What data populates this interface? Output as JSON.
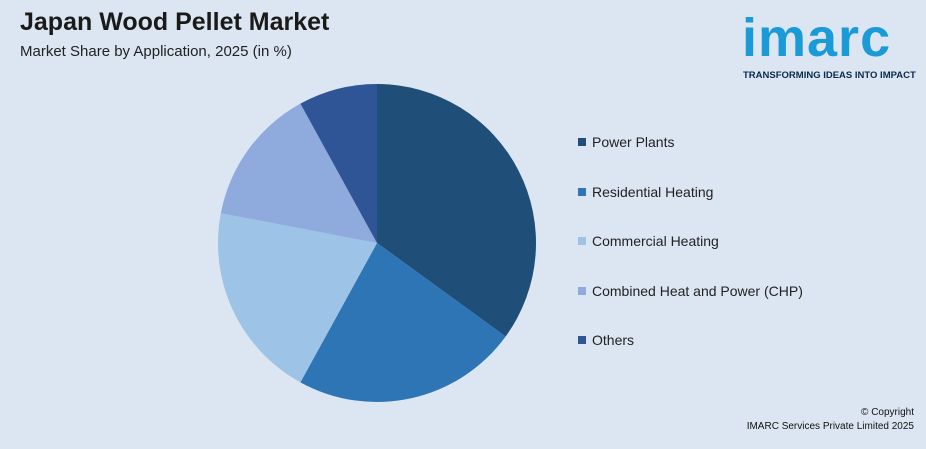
{
  "header": {
    "title": "Japan Wood Pellet Market",
    "subtitle": "Market Share by Application, 2025 (in %)"
  },
  "logo": {
    "word": "imarc",
    "tagline": "TRANSFORMING IDEAS INTO IMPACT",
    "color": "#1a9ad6"
  },
  "chart_data": {
    "type": "pie",
    "categories": [
      "Power Plants",
      "Residential Heating",
      "Commercial Heating",
      "Combined Heat and Power (CHP)",
      "Others"
    ],
    "values": [
      35,
      23,
      20,
      14,
      8
    ],
    "colors": [
      "#1f4e79",
      "#2e75b6",
      "#9dc3e6",
      "#8faadc",
      "#2f5597"
    ],
    "legend_position": "right"
  },
  "footer": {
    "copyright": "© Copyright",
    "company": "IMARC Services Private Limited 2025"
  }
}
